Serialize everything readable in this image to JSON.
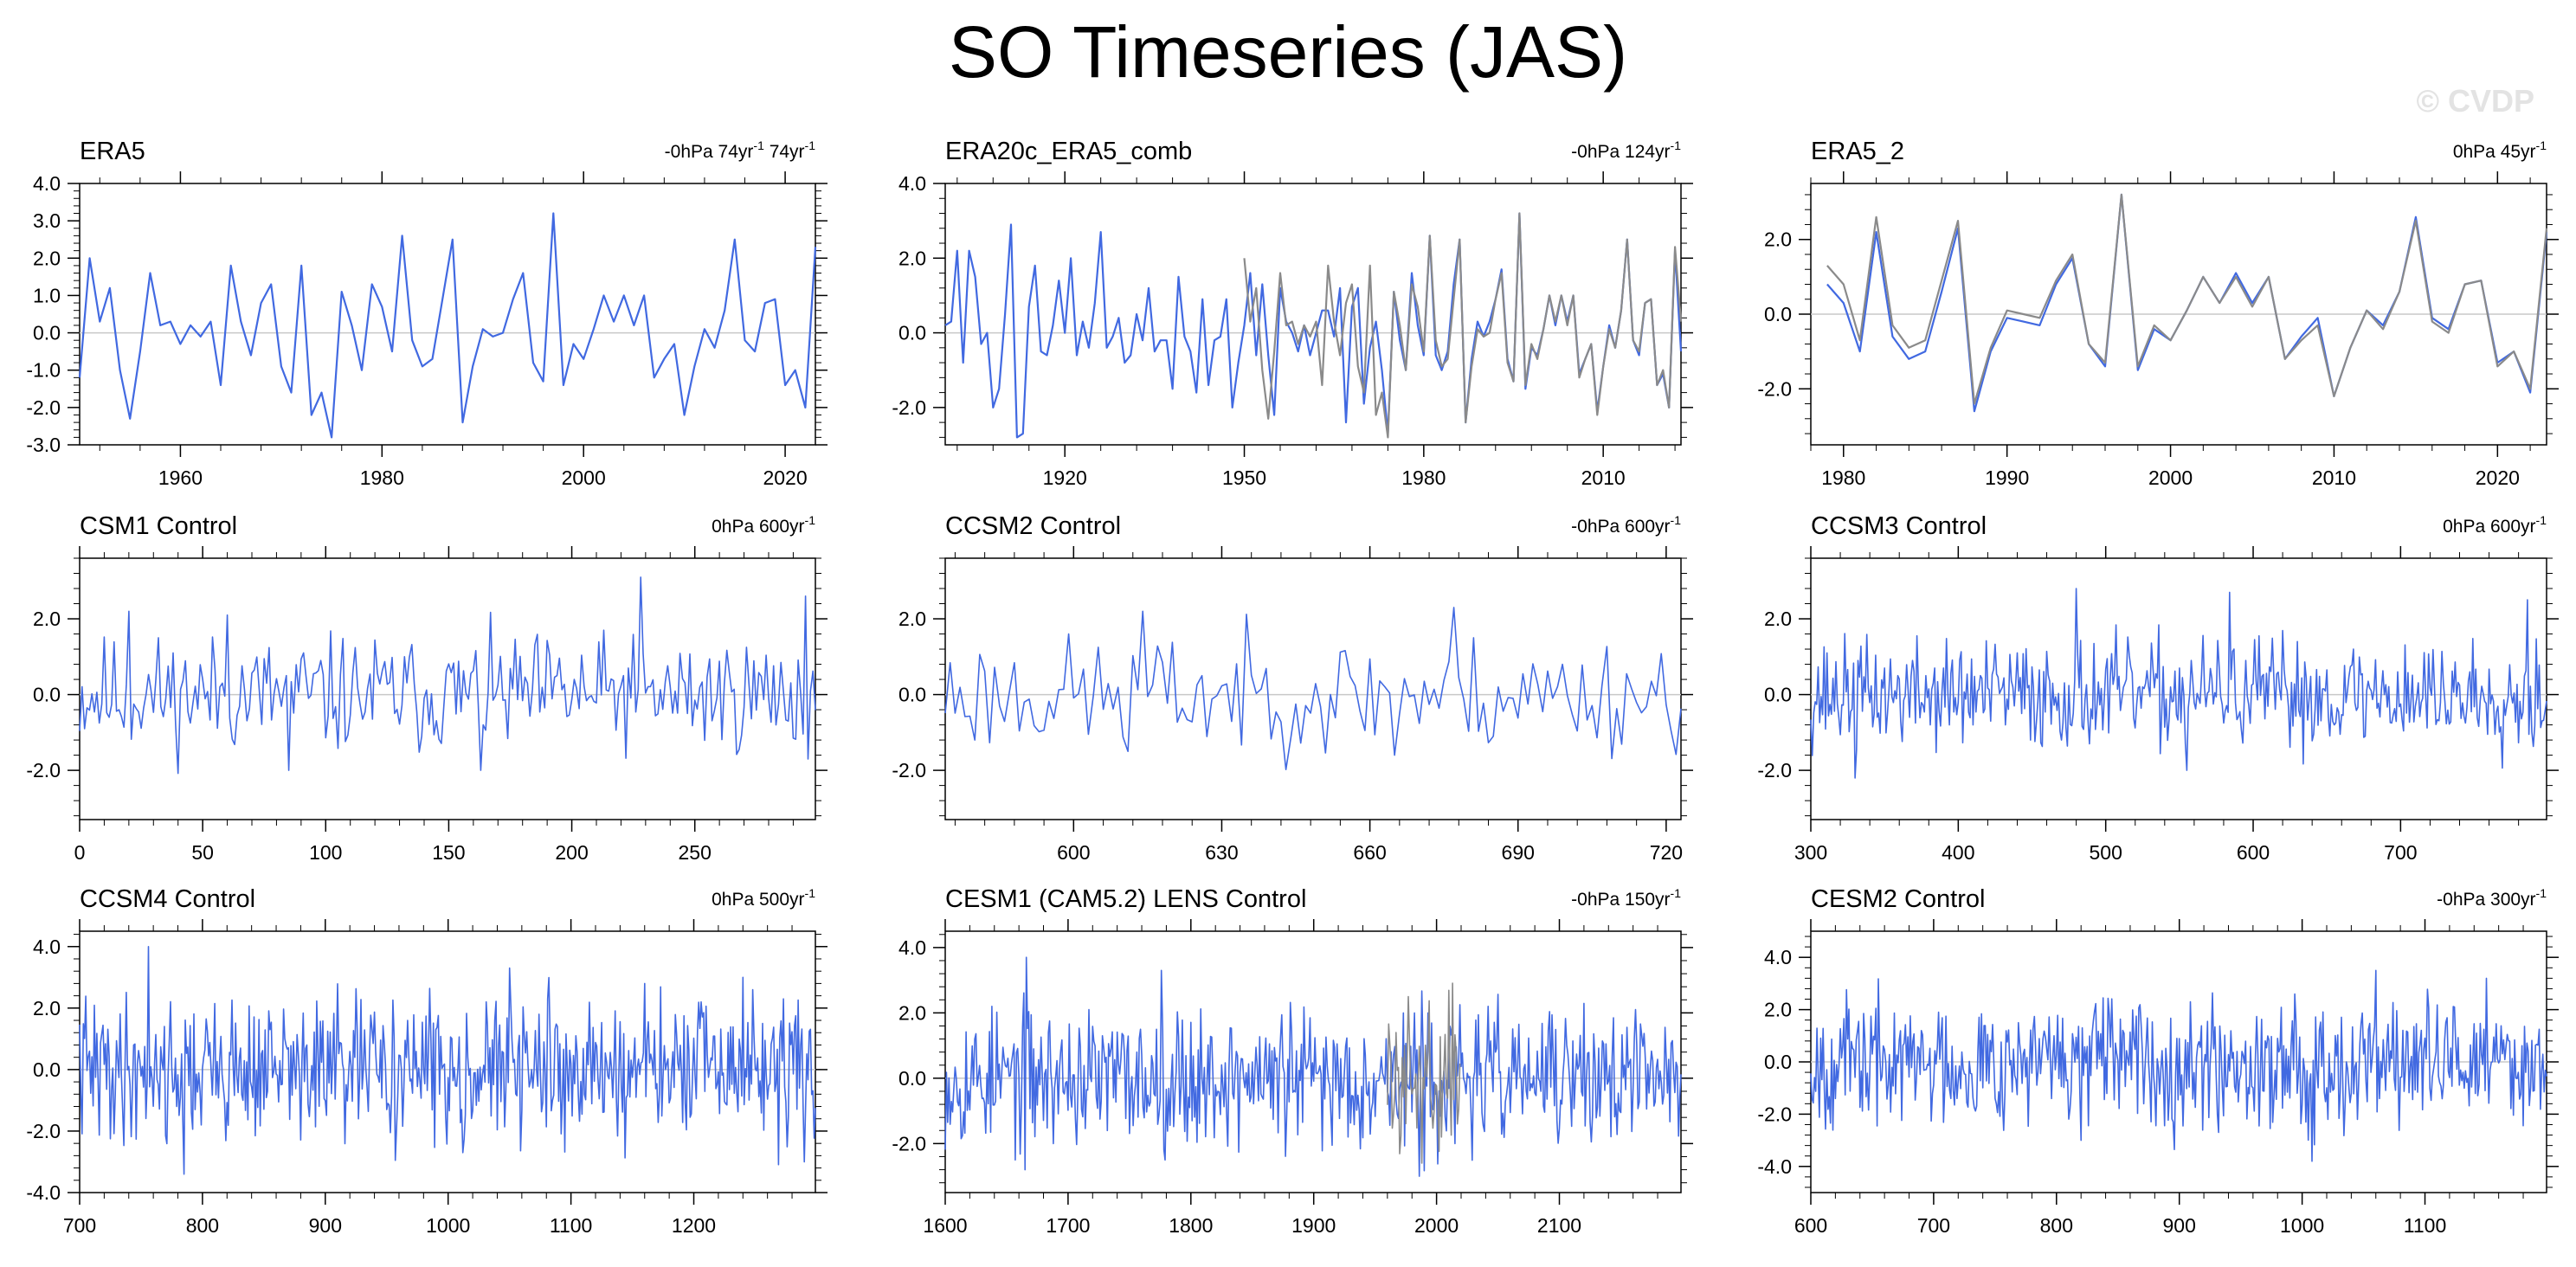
{
  "title": "SO Timeseries (JAS)",
  "watermark": "© CVDP",
  "colors": {
    "model": "#4169e1",
    "comparison": "#8a8a8a",
    "zero_line": "#c8c8c8",
    "axis": "#000000"
  },
  "chart_data": [
    {
      "type": "line",
      "title": "ERA5",
      "annotation": [
        "-0hPa 74yr",
        "-1",
        " 74yr",
        "-1"
      ],
      "xlim": [
        1950,
        2023
      ],
      "ylim": [
        -3,
        4
      ],
      "xticks": [
        1960,
        1980,
        2000,
        2020
      ],
      "yticks": [
        -3,
        -2,
        -1,
        0,
        1,
        2,
        3,
        4
      ],
      "ytick_labels": [
        "-3.0",
        "-2.0",
        "-1.0",
        "0.0",
        "1.0",
        "2.0",
        "3.0",
        "4.0"
      ],
      "x_start": 1950,
      "x_step": 1,
      "series": [
        {
          "role": "model",
          "values": [
            -1.2,
            2.0,
            0.3,
            1.2,
            -1.0,
            -2.3,
            -0.5,
            1.6,
            0.2,
            0.3,
            -0.3,
            0.2,
            -0.1,
            0.3,
            -1.4,
            1.8,
            0.3,
            -0.6,
            0.8,
            1.3,
            -0.9,
            -1.6,
            1.8,
            -2.2,
            -1.6,
            -2.8,
            1.1,
            0.2,
            -1.0,
            1.3,
            0.7,
            -0.5,
            2.6,
            -0.2,
            -0.9,
            -0.7,
            0.9,
            2.5,
            -2.4,
            -0.9,
            0.1,
            -0.1,
            0.0,
            0.9,
            1.6,
            -0.8,
            -1.3,
            3.2,
            -1.4,
            -0.3,
            -0.7,
            0.1,
            1.0,
            0.3,
            1.0,
            0.2,
            1.0,
            -1.2,
            -0.7,
            -0.3,
            -2.2,
            -0.9,
            0.1,
            -0.4,
            0.6,
            2.5,
            -0.2,
            -0.5,
            0.8,
            0.9,
            -1.4,
            -1.0,
            -2.0,
            2.3
          ]
        }
      ]
    },
    {
      "type": "line",
      "title": "ERA20c_ERA5_comb",
      "annotation": [
        "-0hPa 124yr",
        "-1"
      ],
      "xlim": [
        1900,
        2023
      ],
      "ylim": [
        -3,
        4
      ],
      "xticks": [
        1920,
        1950,
        1980,
        2010
      ],
      "yticks": [
        -2,
        0,
        2,
        4
      ],
      "ytick_labels": [
        "-2.0",
        "0.0",
        "2.0",
        "4.0"
      ],
      "x_start": 1900,
      "x_step": 1,
      "series": [
        {
          "role": "model",
          "values": [
            0.2,
            0.3,
            2.2,
            -0.8,
            2.2,
            1.5,
            -0.3,
            0.0,
            -2.0,
            -1.5,
            0.5,
            2.9,
            -2.8,
            -2.7,
            0.7,
            1.8,
            -0.5,
            -0.6,
            0.2,
            1.4,
            0.0,
            2.0,
            -0.6,
            0.3,
            -0.4,
            0.8,
            2.7,
            -0.4,
            -0.1,
            0.4,
            -0.8,
            -0.6,
            0.5,
            -0.2,
            1.2,
            -0.5,
            -0.2,
            -0.2,
            -1.5,
            1.5,
            -0.1,
            -0.5,
            -1.6,
            0.9,
            -1.4,
            -0.2,
            -0.1,
            0.9,
            -2.0,
            -0.8,
            0.2,
            1.6,
            -0.6,
            1.3,
            -0.6,
            -2.2,
            1.2,
            0.3,
            0.0,
            -0.5,
            0.2,
            -0.6,
            0.0,
            0.6,
            0.6,
            -0.1,
            1.2,
            -2.4,
            0.7,
            1.2,
            -1.9,
            -0.4,
            0.3,
            -1.0,
            -2.7,
            1.1,
            -0.2,
            -1.0,
            1.6,
            0.2,
            -0.6,
            2.6,
            -0.6,
            -1.0,
            -0.5,
            1.3,
            2.5,
            -2.4,
            -0.7,
            0.3,
            -0.1,
            0.3,
            0.9,
            1.7,
            -0.7,
            -1.3,
            3.2,
            -1.5,
            -0.4,
            -0.6,
            0.1,
            1.0,
            0.2,
            1.0,
            0.3,
            1.0,
            -1.1,
            -0.7,
            -0.3,
            -2.1,
            -0.9,
            0.2,
            -0.4,
            0.6,
            2.5,
            -0.2,
            -0.6,
            0.8,
            0.9,
            -1.4,
            -1.1,
            -2.0,
            2.2,
            -0.5
          ]
        },
        {
          "role": "comparison",
          "x_start": 1950,
          "values": [
            2.0,
            0.3,
            1.2,
            -1.0,
            -2.3,
            -0.5,
            1.6,
            0.2,
            0.3,
            -0.3,
            0.2,
            -0.1,
            0.3,
            -1.4,
            1.8,
            0.3,
            -0.6,
            0.8,
            1.3,
            -0.9,
            -1.6,
            1.8,
            -2.2,
            -1.6,
            -2.8,
            1.1,
            0.2,
            -1.0,
            1.3,
            0.7,
            -0.5,
            2.6,
            -0.2,
            -0.9,
            -0.7,
            0.9,
            2.5,
            -2.4,
            -0.9,
            0.1,
            -0.1,
            0.0,
            0.9,
            1.6,
            -0.8,
            -1.3,
            3.2,
            -1.4,
            -0.3,
            -0.7,
            0.1,
            1.0,
            0.3,
            1.0,
            0.2,
            1.0,
            -1.2,
            -0.7,
            -0.3,
            -2.2,
            -0.9,
            0.1,
            -0.4,
            0.6,
            2.5,
            -0.2,
            -0.5,
            0.8,
            0.9,
            -1.4,
            -1.0,
            -2.0,
            2.3,
            0.3
          ]
        }
      ]
    },
    {
      "type": "line",
      "title": "ERA5_2",
      "annotation": [
        "0hPa 45yr",
        "-1"
      ],
      "xlim": [
        1978,
        2023
      ],
      "ylim": [
        -3.5,
        3.5
      ],
      "xticks": [
        1980,
        1990,
        2000,
        2010,
        2020
      ],
      "yticks": [
        -2,
        0,
        2
      ],
      "ytick_labels": [
        "-2.0",
        "0.0",
        "2.0"
      ],
      "x_start": 1979,
      "x_step": 1,
      "series": [
        {
          "role": "model",
          "values": [
            0.8,
            0.3,
            -1.0,
            2.2,
            -0.6,
            -1.2,
            -1.0,
            0.6,
            2.3,
            -2.6,
            -1.0,
            -0.1,
            -0.2,
            -0.3,
            0.8,
            1.5,
            -0.8,
            -1.4,
            3.2,
            -1.5,
            -0.4,
            -0.7,
            0.1,
            1.0,
            0.3,
            1.1,
            0.3,
            1.0,
            -1.2,
            -0.6,
            -0.1,
            -2.2,
            -0.9,
            0.1,
            -0.3,
            0.6,
            2.6,
            -0.1,
            -0.4,
            0.8,
            0.9,
            -1.3,
            -1.0,
            -2.1,
            2.2
          ]
        },
        {
          "role": "comparison",
          "values": [
            1.3,
            0.8,
            -0.7,
            2.6,
            -0.3,
            -0.9,
            -0.7,
            0.9,
            2.5,
            -2.4,
            -0.9,
            0.1,
            0.0,
            -0.1,
            0.9,
            1.6,
            -0.8,
            -1.3,
            3.2,
            -1.4,
            -0.3,
            -0.7,
            0.1,
            1.0,
            0.3,
            1.0,
            0.2,
            1.0,
            -1.2,
            -0.7,
            -0.3,
            -2.2,
            -0.9,
            0.1,
            -0.4,
            0.6,
            2.5,
            -0.2,
            -0.5,
            0.8,
            0.9,
            -1.4,
            -1.0,
            -2.0,
            2.3
          ]
        }
      ]
    },
    {
      "type": "line",
      "title": "CSM1 Control",
      "annotation": [
        "0hPa 600yr",
        "-1"
      ],
      "xlim": [
        0,
        299
      ],
      "ylim": [
        -3.3,
        3.6
      ],
      "xticks": [
        0,
        50,
        100,
        150,
        200,
        250
      ],
      "yticks": [
        -2,
        0,
        2
      ],
      "ytick_labels": [
        "-2.0",
        "0.0",
        "2.0"
      ],
      "series": [
        {
          "role": "model",
          "gen": {
            "seed": 11,
            "n": 300,
            "amp": 0.8,
            "spikes": [
              [
                228,
                3.1
              ],
              [
                295,
                2.6
              ],
              [
                296,
                -1.7
              ],
              [
                85,
                -2.0
              ],
              [
                163,
                -2.0
              ],
              [
                20,
                2.2
              ],
              [
                60,
                2.1
              ]
            ]
          }
        }
      ]
    },
    {
      "type": "line",
      "title": "CCSM2 Control",
      "annotation": [
        "-0hPa 600yr",
        "-1"
      ],
      "xlim": [
        574,
        723
      ],
      "ylim": [
        -3.3,
        3.6
      ],
      "xticks": [
        600,
        630,
        660,
        690,
        720
      ],
      "yticks": [
        -2,
        0,
        2
      ],
      "ytick_labels": [
        "-2.0",
        "0.0",
        "2.0"
      ],
      "series": [
        {
          "role": "model",
          "gen": {
            "seed": 23,
            "n": 150,
            "x0": 574,
            "amp": 0.8,
            "spikes": [
              [
                614,
                2.2
              ],
              [
                677,
                2.3
              ],
              [
                665,
                -1.6
              ],
              [
                611,
                -1.5
              ]
            ]
          }
        }
      ]
    },
    {
      "type": "line",
      "title": "CCSM3 Control",
      "annotation": [
        "0hPa 600yr",
        "-1"
      ],
      "xlim": [
        300,
        799
      ],
      "ylim": [
        -3.3,
        3.6
      ],
      "xticks": [
        300,
        400,
        500,
        600,
        700
      ],
      "yticks": [
        -2,
        0,
        2
      ],
      "ytick_labels": [
        "-2.0",
        "0.0",
        "2.0"
      ],
      "series": [
        {
          "role": "model",
          "gen": {
            "seed": 37,
            "n": 500,
            "x0": 300,
            "amp": 0.75,
            "spikes": [
              [
                480,
                2.8
              ],
              [
                584,
                2.7
              ],
              [
                786,
                2.5
              ],
              [
                330,
                -2.2
              ],
              [
                555,
                -2.0
              ]
            ]
          }
        }
      ]
    },
    {
      "type": "line",
      "title": "CCSM4 Control",
      "annotation": [
        "0hPa 500yr",
        "-1"
      ],
      "xlim": [
        700,
        1299
      ],
      "ylim": [
        -4,
        4.5
      ],
      "xticks": [
        700,
        800,
        900,
        1000,
        1100,
        1200
      ],
      "yticks": [
        -4,
        -2,
        0,
        2,
        4
      ],
      "ytick_labels": [
        "-4.0",
        "-2.0",
        "0.0",
        "2.0",
        "4.0"
      ],
      "series": [
        {
          "role": "model",
          "gen": {
            "seed": 41,
            "n": 600,
            "x0": 700,
            "amp": 1.2,
            "spikes": [
              [
                756,
                4.0
              ],
              [
                785,
                -3.4
              ],
              [
                1050,
                3.3
              ],
              [
                1240,
                3.0
              ],
              [
                1290,
                -3.0
              ]
            ]
          }
        }
      ]
    },
    {
      "type": "line",
      "title": "CESM1 (CAM5.2) LENS Control",
      "annotation": [
        "-0hPa 150yr",
        "-1"
      ],
      "xlim": [
        1600,
        2199
      ],
      "ylim": [
        -3.5,
        4.5
      ],
      "xticks": [
        1600,
        1700,
        1800,
        1900,
        2000,
        2100
      ],
      "yticks": [
        -2,
        0,
        2,
        4
      ],
      "ytick_labels": [
        "-2.0",
        "0.0",
        "2.0",
        "4.0"
      ],
      "series": [
        {
          "role": "model",
          "gen": {
            "seed": 53,
            "n": 600,
            "x0": 1600,
            "amp": 1.1,
            "spikes": [
              [
                1666,
                3.7
              ],
              [
                1776,
                3.3
              ],
              [
                1986,
                -3.0
              ],
              [
                1665,
                -2.8
              ]
            ]
          }
        },
        {
          "role": "comparison",
          "gen": {
            "seed": 59,
            "n": 60,
            "x0": 1960,
            "amp": 1.1,
            "spikes": [
              [
                1977,
                2.5
              ],
              [
                1988,
                -2.6
              ]
            ]
          }
        }
      ]
    },
    {
      "type": "line",
      "title": "CESM2 Control",
      "annotation": [
        "-0hPa 300yr",
        "-1"
      ],
      "xlim": [
        600,
        1199
      ],
      "ylim": [
        -5,
        5
      ],
      "xticks": [
        600,
        700,
        800,
        900,
        1000,
        1100
      ],
      "yticks": [
        -4,
        -2,
        0,
        2,
        4
      ],
      "ytick_labels": [
        "-4.0",
        "-2.0",
        "0.0",
        "2.0",
        "4.0"
      ],
      "series": [
        {
          "role": "model",
          "gen": {
            "seed": 67,
            "n": 600,
            "x0": 600,
            "amp": 1.25,
            "spikes": [
              [
                1008,
                -3.8
              ],
              [
                1060,
                3.5
              ],
              [
                1150,
                3.2
              ],
              [
                820,
                -3.0
              ]
            ]
          }
        }
      ]
    }
  ]
}
